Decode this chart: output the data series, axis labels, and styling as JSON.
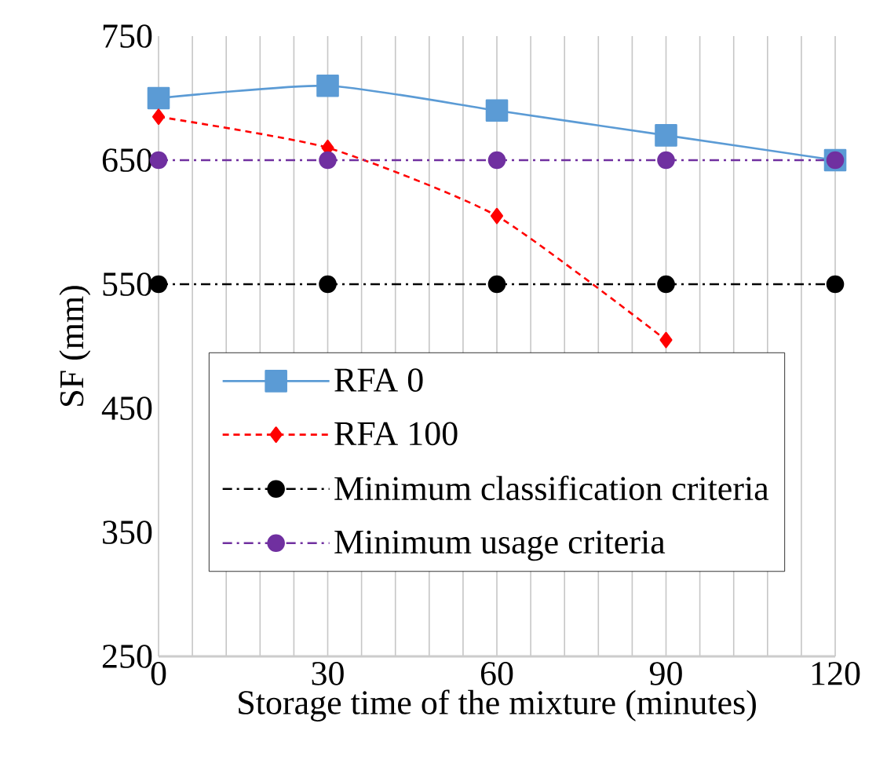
{
  "chart_data": {
    "type": "line",
    "xlabel": "Storage time of the mixture (minutes)",
    "ylabel": "SF (mm)",
    "x": [
      0,
      30,
      60,
      90,
      120
    ],
    "series": [
      {
        "name": "RFA 0",
        "color": "#5b9bd5",
        "values": [
          700,
          710,
          690,
          670,
          650
        ],
        "marker": "square",
        "line_style": "solid"
      },
      {
        "name": "RFA 100",
        "color": "#ff0000",
        "values": [
          685,
          660,
          605,
          505,
          null
        ],
        "marker": "diamond",
        "line_style": "dashed"
      },
      {
        "name": "Minimum classification criteria",
        "color": "#000000",
        "values": [
          550,
          550,
          550,
          550,
          550
        ],
        "marker": "circle",
        "line_style": "dashdot"
      },
      {
        "name": "Minimum usage criteria",
        "color": "#7030a0",
        "values": [
          650,
          650,
          650,
          650,
          650
        ],
        "marker": "circle",
        "line_style": "dashdot"
      }
    ],
    "xlim": [
      0,
      120
    ],
    "ylim": [
      250,
      750
    ],
    "xticks": [
      0,
      {
        "value": 6,
        "label": null
      },
      {
        "value": 12,
        "label": null
      },
      {
        "value": 18,
        "label": null
      },
      {
        "value": 24,
        "label": null
      },
      30,
      {
        "value": 36,
        "label": null
      },
      {
        "value": 42,
        "label": null
      },
      {
        "value": 48,
        "label": null
      },
      {
        "value": 54,
        "label": null
      },
      60,
      {
        "value": 66,
        "label": null
      },
      {
        "value": 72,
        "label": null
      },
      {
        "value": 78,
        "label": null
      },
      {
        "value": 84,
        "label": null
      },
      90,
      {
        "value": 96,
        "label": null
      },
      {
        "value": 102,
        "label": null
      },
      {
        "value": 108,
        "label": null
      },
      {
        "value": 114,
        "label": null
      },
      120
    ],
    "yticks": [
      250,
      350,
      450,
      550,
      650,
      750
    ],
    "grid": "x",
    "legend": "bottom"
  }
}
